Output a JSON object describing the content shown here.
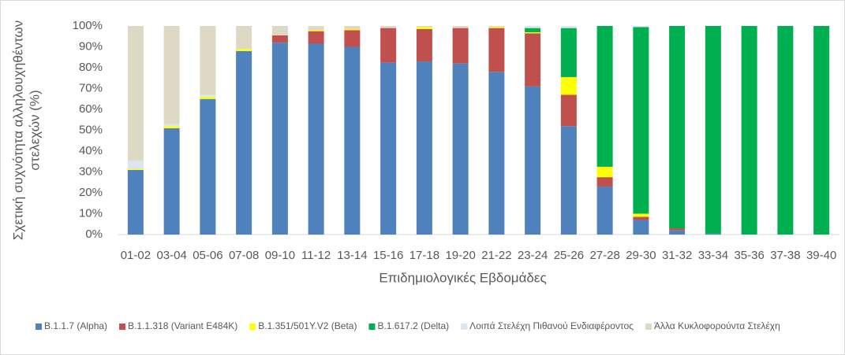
{
  "chart_data": {
    "type": "stacked_bar",
    "ylabel": [
      "Σχετική συχνότητα αλληλουχηθέντων",
      "στελεχών (%)"
    ],
    "xlabel": "Επιδημιολογικές Εβδομάδες",
    "categories": [
      "01-02",
      "03-04",
      "05-06",
      "07-08",
      "09-10",
      "11-12",
      "13-14",
      "15-16",
      "17-18",
      "19-20",
      "21-22",
      "23-24",
      "25-26",
      "27-28",
      "29-30",
      "31-32",
      "33-34",
      "35-36",
      "37-38",
      "39-40"
    ],
    "series": [
      {
        "name": "B.1.1.7 (Alpha)",
        "color": "#4f81bd",
        "values": [
          31,
          51,
          65,
          88,
          92,
          91.5,
          90,
          82.5,
          83,
          82,
          78,
          71,
          52,
          23,
          7,
          2,
          0.5,
          0,
          0,
          0
        ]
      },
      {
        "name": "B.1.1.318 (Variant E484K)",
        "color": "#c0504d",
        "values": [
          0,
          0,
          0,
          0,
          3.5,
          6,
          8,
          16.5,
          15.5,
          17,
          21,
          25.5,
          15,
          4.5,
          1.5,
          1,
          0,
          0,
          0,
          0
        ]
      },
      {
        "name": "B.1.351/501Y.V2 (Beta)",
        "color": "#ffff00",
        "values": [
          0.5,
          1,
          1,
          1,
          0,
          0.5,
          0.5,
          0,
          1,
          0,
          0.5,
          0.5,
          8.5,
          5,
          1.5,
          0,
          0,
          0,
          0,
          0
        ]
      },
      {
        "name": "B.1.617.2 (Delta)",
        "color": "#00b050",
        "values": [
          0,
          0,
          0,
          0,
          0,
          0,
          0,
          0,
          0,
          0,
          0,
          2,
          23.5,
          67.5,
          89.5,
          97,
          99.5,
          100,
          100,
          100
        ]
      },
      {
        "name": "Λοιπά Στελέχη Πιθανού Ενδιαφέροντος",
        "color": "#dce6f1",
        "values": [
          4,
          1,
          1,
          0,
          0,
          0,
          0,
          0,
          0,
          0,
          0,
          1,
          1,
          0,
          0.5,
          0,
          0,
          0,
          0,
          0
        ]
      },
      {
        "name": "Άλλα Κυκλοφορούντα Στελέχη",
        "color": "#ddd9c4",
        "values": [
          64.5,
          47,
          33,
          11,
          4.5,
          2,
          1.5,
          1,
          0.5,
          1,
          0.5,
          0,
          0,
          0,
          0,
          0,
          0,
          0,
          0,
          0
        ]
      }
    ],
    "ylim": [
      0,
      100
    ],
    "yticks": [
      {
        "value": 0,
        "label": "0%"
      },
      {
        "value": 10,
        "label": "10%"
      },
      {
        "value": 20,
        "label": "20%"
      },
      {
        "value": 30,
        "label": "30%"
      },
      {
        "value": 40,
        "label": "40%"
      },
      {
        "value": 50,
        "label": "50%"
      },
      {
        "value": 60,
        "label": "60%"
      },
      {
        "value": 70,
        "label": "70%"
      },
      {
        "value": 80,
        "label": "80%"
      },
      {
        "value": 90,
        "label": "90%"
      },
      {
        "value": 100,
        "label": "100%"
      }
    ],
    "legend": "bottom"
  }
}
